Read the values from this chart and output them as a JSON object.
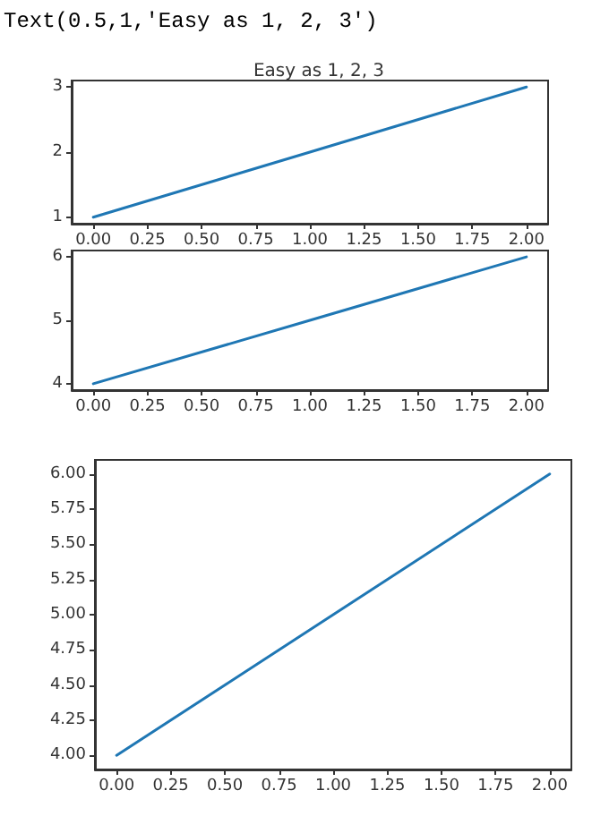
{
  "chart_data": [
    {
      "type": "line",
      "title": "Easy as 1, 2, 3",
      "annotations": [
        "Text(0.5,1,'Easy as 1, 2, 3')"
      ],
      "x": [
        0,
        1,
        2
      ],
      "series": [
        {
          "color": "#1f77b4",
          "values": [
            1,
            2,
            3
          ]
        }
      ],
      "xlim": [
        -0.1,
        2.1
      ],
      "xticks": [
        {
          "value": 0,
          "label": "0.00"
        },
        {
          "value": 0.25,
          "label": "0.25"
        },
        {
          "value": 0.5,
          "label": "0.50"
        },
        {
          "value": 0.75,
          "label": "0.75"
        },
        {
          "value": 1,
          "label": "1.00"
        },
        {
          "value": 1.25,
          "label": "1.25"
        },
        {
          "value": 1.5,
          "label": "1.50"
        },
        {
          "value": 1.75,
          "label": "1.75"
        },
        {
          "value": 2,
          "label": "2.00"
        }
      ],
      "ylim": [
        0.9,
        3.1
      ],
      "yticks": [
        1,
        2,
        3
      ],
      "grid": false,
      "marker": "none",
      "line_style": "solid"
    },
    {
      "type": "line",
      "x": [
        0,
        1,
        2
      ],
      "series": [
        {
          "color": "#1f77b4",
          "values": [
            4,
            5,
            6
          ]
        }
      ],
      "xlim": [
        -0.1,
        2.1
      ],
      "xticks": [
        {
          "value": 0,
          "label": "0.00"
        },
        {
          "value": 0.25,
          "label": "0.25"
        },
        {
          "value": 0.5,
          "label": "0.50"
        },
        {
          "value": 0.75,
          "label": "0.75"
        },
        {
          "value": 1,
          "label": "1.00"
        },
        {
          "value": 1.25,
          "label": "1.25"
        },
        {
          "value": 1.5,
          "label": "1.50"
        },
        {
          "value": 1.75,
          "label": "1.75"
        },
        {
          "value": 2,
          "label": "2.00"
        }
      ],
      "ylim": [
        3.9,
        6.1
      ],
      "yticks": [
        4,
        5,
        6
      ],
      "grid": false,
      "marker": "none",
      "line_style": "solid"
    },
    {
      "type": "line",
      "x": [
        0,
        1,
        2
      ],
      "series": [
        {
          "color": "#1f77b4",
          "values": [
            4,
            5,
            6
          ]
        }
      ],
      "xlim": [
        -0.1,
        2.1
      ],
      "xticks": [
        {
          "value": 0,
          "label": "0.00"
        },
        {
          "value": 0.25,
          "label": "0.25"
        },
        {
          "value": 0.5,
          "label": "0.50"
        },
        {
          "value": 0.75,
          "label": "0.75"
        },
        {
          "value": 1,
          "label": "1.00"
        },
        {
          "value": 1.25,
          "label": "1.25"
        },
        {
          "value": 1.5,
          "label": "1.50"
        },
        {
          "value": 1.75,
          "label": "1.75"
        },
        {
          "value": 2,
          "label": "2.00"
        }
      ],
      "ylim": [
        3.9,
        6.1
      ],
      "yticks": [
        {
          "value": 4,
          "label": "4.00"
        },
        {
          "value": 4.25,
          "label": "4.25"
        },
        {
          "value": 4.5,
          "label": "4.50"
        },
        {
          "value": 4.75,
          "label": "4.75"
        },
        {
          "value": 5,
          "label": "5.00"
        },
        {
          "value": 5.25,
          "label": "5.25"
        },
        {
          "value": 5.5,
          "label": "5.50"
        },
        {
          "value": 5.75,
          "label": "5.75"
        },
        {
          "value": 6,
          "label": "6.00"
        }
      ],
      "grid": false,
      "marker": "none",
      "line_style": "solid"
    }
  ]
}
